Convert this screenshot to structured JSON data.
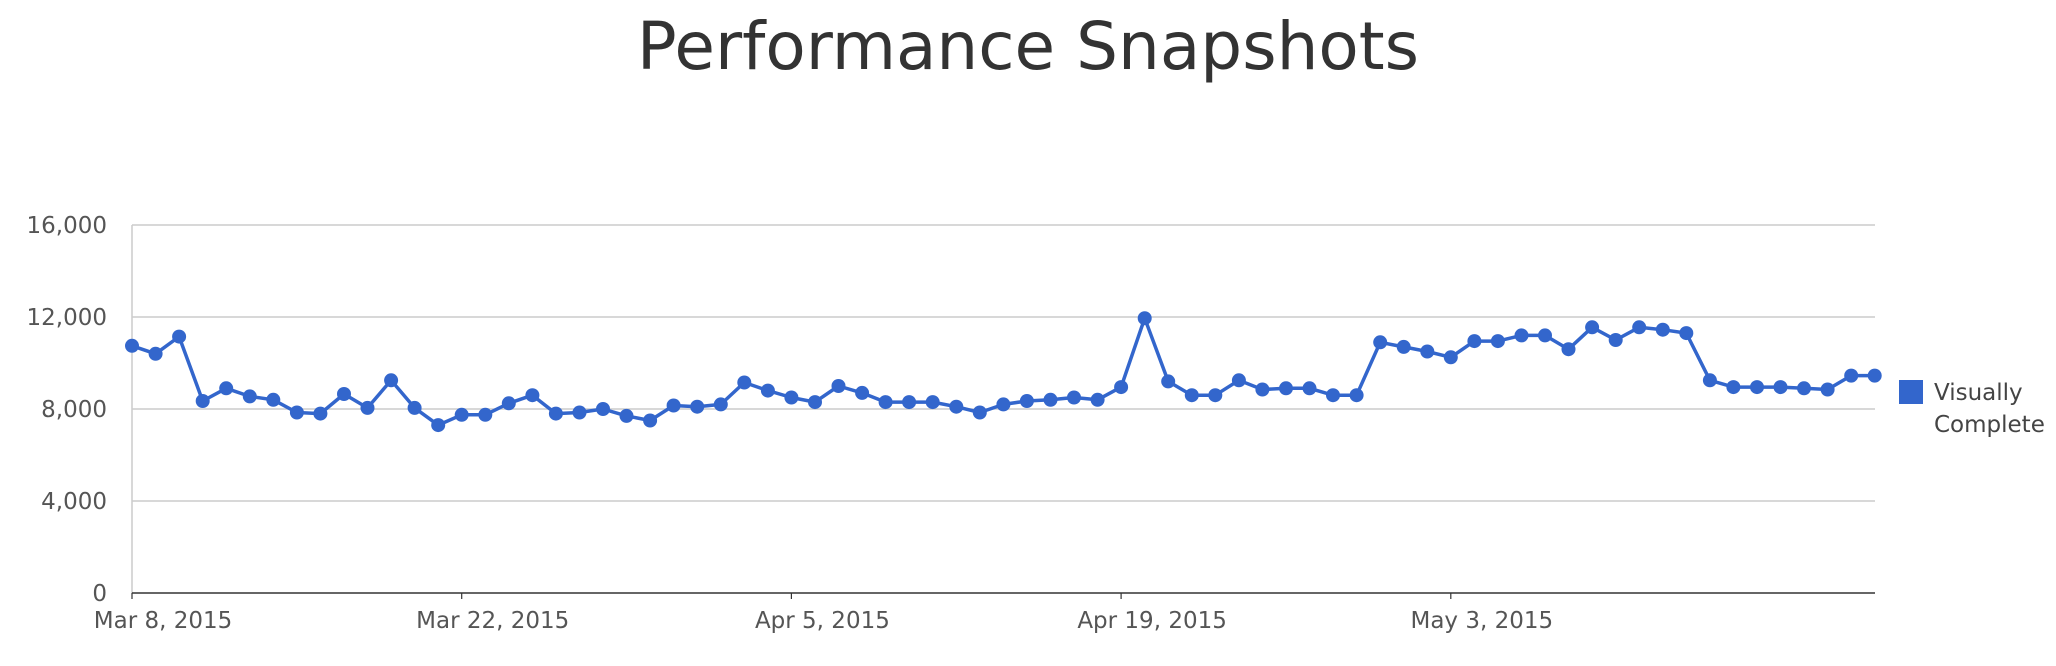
{
  "chart_data": {
    "type": "line",
    "title": "Performance Snapshots",
    "xlabel": "",
    "ylabel": "",
    "ylim": [
      0,
      16000
    ],
    "y_ticks": [
      "0",
      "4,000",
      "8,000",
      "12,000",
      "16,000"
    ],
    "y_tick_values": [
      0,
      4000,
      8000,
      12000,
      16000
    ],
    "x_start_date": "2015-03-08",
    "x_ticks": [
      {
        "label": "Mar 8, 2015",
        "date": "2015-03-08"
      },
      {
        "label": "Mar 22, 2015",
        "date": "2015-03-22"
      },
      {
        "label": "Apr 5, 2015",
        "date": "2015-04-05"
      },
      {
        "label": "Apr 19, 2015",
        "date": "2015-04-19"
      },
      {
        "label": "May 3, 2015",
        "date": "2015-05-03"
      }
    ],
    "grid": true,
    "legend_position": "right",
    "series": [
      {
        "name": "Visually Complete",
        "color": "#3366cc",
        "values": [
          10750,
          10400,
          11150,
          8350,
          8900,
          8550,
          8400,
          7850,
          7800,
          8650,
          8050,
          9250,
          8050,
          7300,
          7750,
          7750,
          8250,
          8600,
          7800,
          7850,
          8000,
          7700,
          7500,
          8150,
          8100,
          8200,
          9150,
          8800,
          8500,
          8300,
          9000,
          8700,
          8300,
          8300,
          8300,
          8100,
          7850,
          8200,
          8350,
          8400,
          8500,
          8400,
          8950,
          11950,
          9200,
          8600,
          8600,
          9250,
          8850,
          8900,
          8900,
          8600,
          8600,
          10900,
          10700,
          10500,
          10250,
          10950,
          10950,
          11200,
          11200,
          10600,
          11550,
          11000,
          11550,
          11450,
          11300,
          9250,
          8950,
          8950,
          8950,
          8900,
          8850,
          9450,
          9450
        ]
      }
    ]
  }
}
